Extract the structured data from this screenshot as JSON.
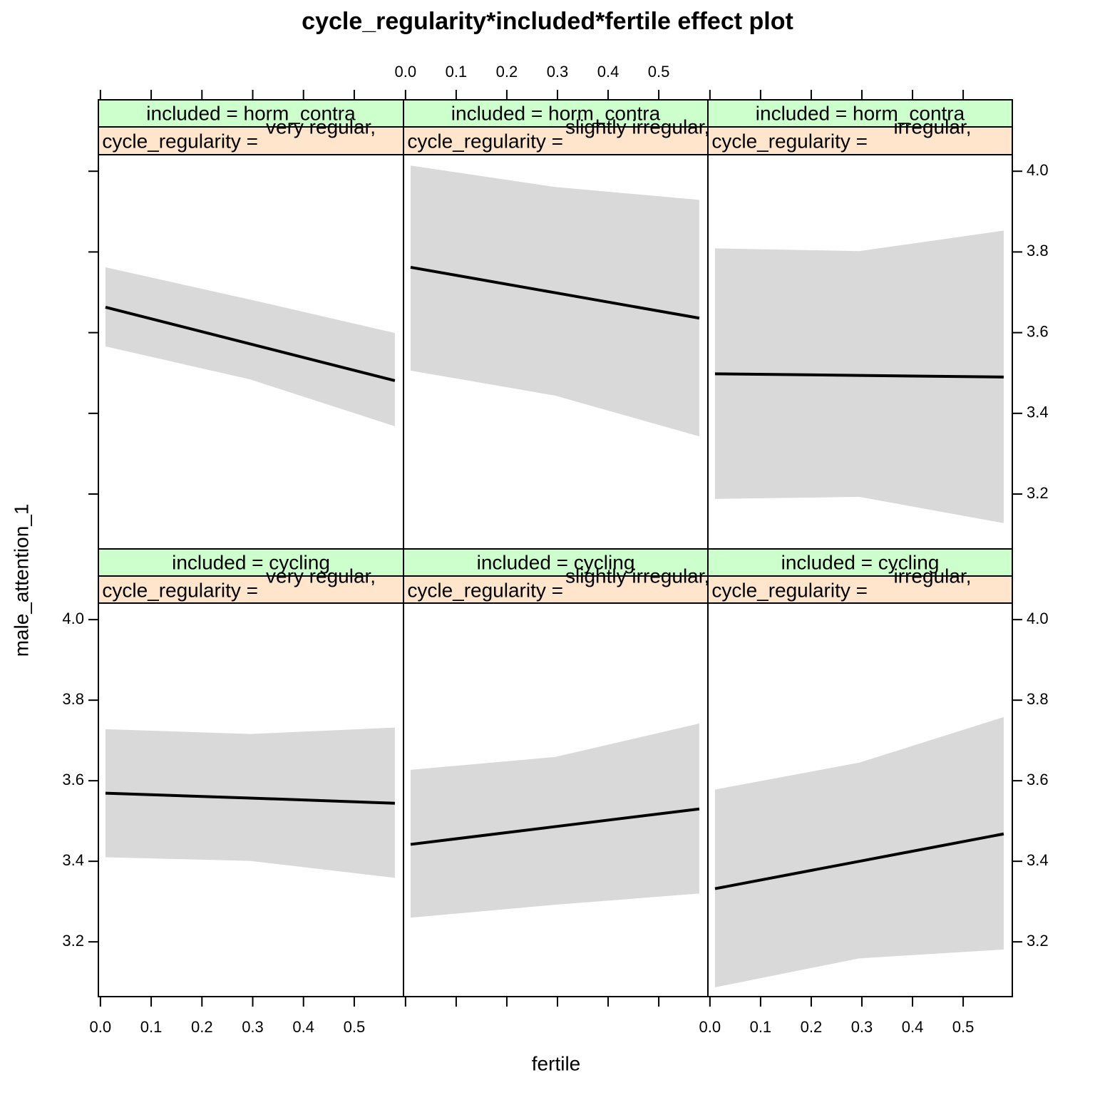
{
  "title": "cycle_regularity*included*fertile effect plot",
  "xlabel": "fertile",
  "ylabel": "male_attention_1",
  "chart_data": [
    {
      "type": "line",
      "strip_top": "included = horm_contra",
      "strip_bottom": "cycle_regularity =",
      "strip_level": "very regular,",
      "x": [
        0.01,
        0.295,
        0.58
      ],
      "values": [
        3.663,
        3.572,
        3.481
      ],
      "lower": [
        3.566,
        3.484,
        3.368
      ],
      "upper": [
        3.762,
        3.682,
        3.599
      ],
      "color": "#000000",
      "band_color": "#d9d9d9",
      "xlim": [
        -0.004,
        0.597
      ],
      "ylim": [
        3.064,
        4.041
      ],
      "xticks": [
        {
          "value": 0,
          "label": "0.0"
        },
        0.1,
        0.2,
        0.3,
        0.4,
        0.5
      ],
      "yticks": [
        3.2,
        3.4,
        3.6,
        3.8,
        {
          "value": 4,
          "label": "4.0"
        }
      ],
      "x_axis_side": "top",
      "x_tick_labels": false,
      "y_axis_side": "left",
      "y_tick_labels": false
    },
    {
      "type": "line",
      "strip_top": "included = horm_contra",
      "strip_bottom": "cycle_regularity =",
      "strip_level": "slightly irregular,",
      "x": [
        0.01,
        0.295,
        0.58
      ],
      "values": [
        3.762,
        3.699,
        3.636
      ],
      "lower": [
        3.506,
        3.444,
        3.343
      ],
      "upper": [
        4.014,
        3.961,
        3.929
      ],
      "color": "#000000",
      "band_color": "#d9d9d9",
      "xlim": [
        -0.004,
        0.597
      ],
      "ylim": [
        3.064,
        4.041
      ],
      "xticks": [
        {
          "value": 0,
          "label": "0.0"
        },
        0.1,
        0.2,
        0.3,
        0.4,
        0.5
      ],
      "yticks": [
        3.2,
        3.4,
        3.6,
        3.8,
        {
          "value": 4,
          "label": "4.0"
        }
      ],
      "x_axis_side": "top",
      "x_tick_labels": true
    },
    {
      "type": "line",
      "strip_top": "included = horm_contra",
      "strip_bottom": "cycle_regularity =",
      "strip_level": "irregular,",
      "x": [
        0.01,
        0.295,
        0.58
      ],
      "values": [
        3.498,
        3.494,
        3.49
      ],
      "lower": [
        3.188,
        3.193,
        3.128
      ],
      "upper": [
        3.809,
        3.802,
        3.853
      ],
      "color": "#000000",
      "band_color": "#d9d9d9",
      "xlim": [
        -0.004,
        0.597
      ],
      "ylim": [
        3.064,
        4.041
      ],
      "xticks": [
        {
          "value": 0,
          "label": "0.0"
        },
        0.1,
        0.2,
        0.3,
        0.4,
        0.5
      ],
      "yticks": [
        3.2,
        3.4,
        3.6,
        3.8,
        {
          "value": 4,
          "label": "4.0"
        }
      ],
      "x_axis_side": "top",
      "x_tick_labels": false,
      "y_axis_side": "right",
      "y_tick_labels": true
    },
    {
      "type": "line",
      "strip_top": "included = cycling",
      "strip_bottom": "cycle_regularity =",
      "strip_level": "very regular,",
      "x": [
        0.01,
        0.295,
        0.58
      ],
      "values": [
        3.569,
        3.557,
        3.544
      ],
      "lower": [
        3.41,
        3.401,
        3.359
      ],
      "upper": [
        3.728,
        3.716,
        3.732
      ],
      "color": "#000000",
      "band_color": "#d9d9d9",
      "xlim": [
        -0.004,
        0.597
      ],
      "ylim": [
        3.064,
        4.041
      ],
      "xticks": [
        {
          "value": 0,
          "label": "0.0"
        },
        0.1,
        0.2,
        0.3,
        0.4,
        0.5
      ],
      "yticks": [
        3.2,
        3.4,
        3.6,
        3.8,
        {
          "value": 4,
          "label": "4.0"
        }
      ],
      "x_axis_side": "bottom",
      "x_tick_labels": true,
      "y_axis_side": "left",
      "y_tick_labels": true
    },
    {
      "type": "line",
      "strip_top": "included = cycling",
      "strip_bottom": "cycle_regularity =",
      "strip_level": "slightly irregular,",
      "x": [
        0.01,
        0.295,
        0.58
      ],
      "values": [
        3.442,
        3.486,
        3.53
      ],
      "lower": [
        3.26,
        3.292,
        3.32
      ],
      "upper": [
        3.627,
        3.659,
        3.742
      ],
      "color": "#000000",
      "band_color": "#d9d9d9",
      "xlim": [
        -0.004,
        0.597
      ],
      "ylim": [
        3.064,
        4.041
      ],
      "xticks": [
        {
          "value": 0,
          "label": "0.0"
        },
        0.1,
        0.2,
        0.3,
        0.4,
        0.5
      ],
      "yticks": [
        3.2,
        3.4,
        3.6,
        3.8,
        {
          "value": 4,
          "label": "4.0"
        }
      ],
      "x_axis_side": "bottom",
      "x_tick_labels": false
    },
    {
      "type": "line",
      "strip_top": "included = cycling",
      "strip_bottom": "cycle_regularity =",
      "strip_level": "irregular,",
      "x": [
        0.01,
        0.295,
        0.58
      ],
      "values": [
        3.332,
        3.4,
        3.468
      ],
      "lower": [
        3.087,
        3.159,
        3.181
      ],
      "upper": [
        3.578,
        3.645,
        3.758
      ],
      "color": "#000000",
      "band_color": "#d9d9d9",
      "xlim": [
        -0.004,
        0.597
      ],
      "ylim": [
        3.064,
        4.041
      ],
      "xticks": [
        {
          "value": 0,
          "label": "0.0"
        },
        0.1,
        0.2,
        0.3,
        0.4,
        0.5
      ],
      "yticks": [
        3.2,
        3.4,
        3.6,
        3.8,
        {
          "value": 4,
          "label": "4.0"
        }
      ],
      "x_axis_side": "bottom",
      "x_tick_labels": true,
      "y_axis_side": "right",
      "y_tick_labels": true
    }
  ]
}
